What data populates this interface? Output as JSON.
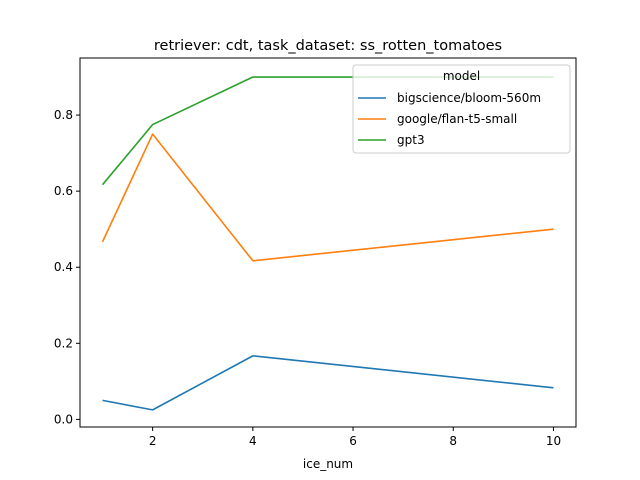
{
  "chart_data": {
    "type": "line",
    "title": "retriever: cdt, task_dataset: ss_rotten_tomatoes",
    "xlabel": "ice_num",
    "ylabel": "",
    "x": [
      1,
      2,
      4,
      10
    ],
    "xlim": [
      0.55,
      10.45
    ],
    "ylim": [
      -0.02,
      0.95
    ],
    "xticks": [
      2,
      4,
      6,
      8,
      10
    ],
    "xtick_labels": [
      "2",
      "4",
      "6",
      "8",
      "10"
    ],
    "yticks": [
      0.0,
      0.2,
      0.4,
      0.6,
      0.8
    ],
    "ytick_labels": [
      "0.0",
      "0.2",
      "0.4",
      "0.6",
      "0.8"
    ],
    "grid": false,
    "legend": {
      "title": "model",
      "placement": "top-right"
    },
    "series": [
      {
        "name": "bigscience/bloom-560m",
        "color": "#1f77b4",
        "values": [
          0.05,
          0.025,
          0.167,
          0.083
        ]
      },
      {
        "name": "google/flan-t5-small",
        "color": "#ff7f0e",
        "values": [
          0.467,
          0.75,
          0.417,
          0.5
        ]
      },
      {
        "name": "gpt3",
        "color": "#2ca02c",
        "values": [
          0.617,
          0.775,
          0.9,
          0.9
        ]
      }
    ]
  }
}
